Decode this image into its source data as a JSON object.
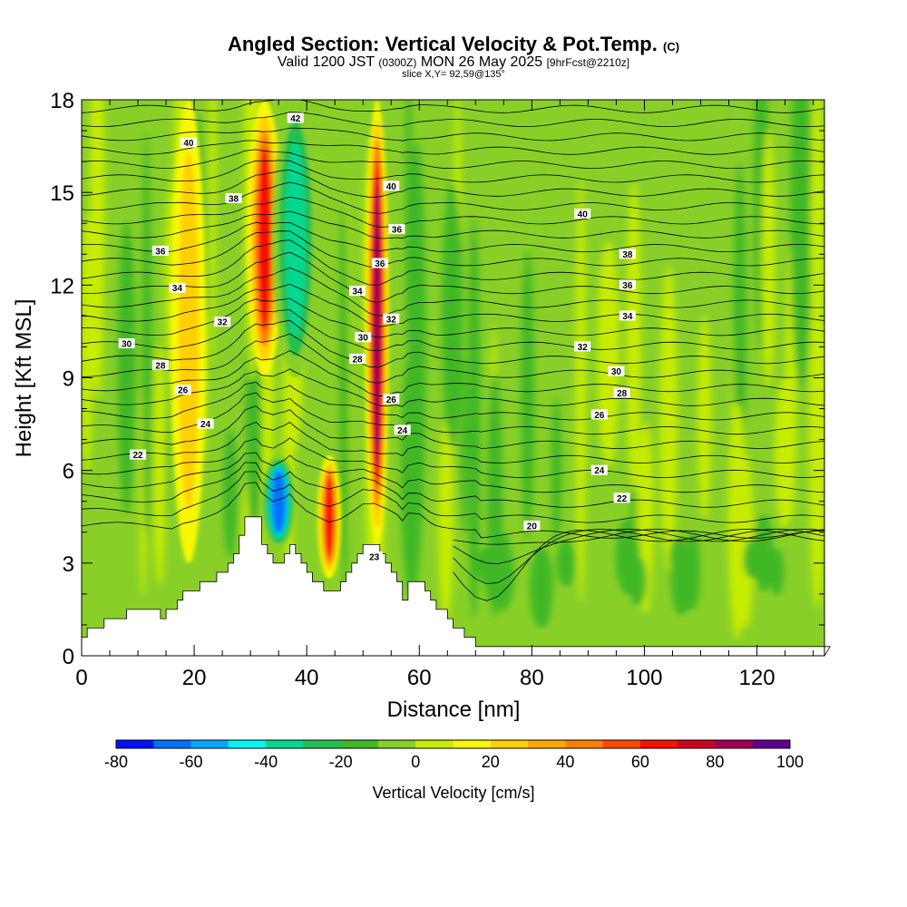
{
  "header": {
    "title_main": "Angled Section: Vertical Velocity & Pot.Temp.",
    "title_suffix": "(C)",
    "valid_prefix": "Valid 1200 JST",
    "valid_utc": "(0300Z)",
    "valid_date": "MON 26 May 2025",
    "valid_fcst": "[9hrFcst@2210z]",
    "slice": "slice X,Y= 92,59@135°"
  },
  "chart_data": {
    "type": "heatmap",
    "xlabel": "Distance [nm]",
    "ylabel": "Height [Kft MSL]",
    "xlim": [
      0,
      132
    ],
    "ylim": [
      0,
      18
    ],
    "x_ticks": [
      "0",
      "20",
      "40",
      "60",
      "80",
      "100",
      "120"
    ],
    "x_tick_values": [
      0,
      20,
      40,
      60,
      80,
      100,
      120
    ],
    "y_ticks": [
      "0",
      "3",
      "6",
      "9",
      "12",
      "15",
      "18"
    ],
    "y_tick_values": [
      0,
      3,
      6,
      9,
      12,
      15,
      18
    ],
    "colorbar": {
      "label": "Vertical Velocity [cm/s]",
      "tick_labels": [
        "-80",
        "-60",
        "-40",
        "-20",
        "0",
        "20",
        "40",
        "60",
        "80",
        "100"
      ],
      "range": [
        -80,
        100
      ],
      "step": 10,
      "colors": [
        "#0010ff",
        "#0070ff",
        "#00a8ff",
        "#00f8f0",
        "#00d890",
        "#20c050",
        "#40b828",
        "#88d028",
        "#c8ec00",
        "#f8f800",
        "#ffd000",
        "#ffa800",
        "#ff8000",
        "#ff4800",
        "#f81000",
        "#d00020",
        "#a00050",
        "#600090"
      ]
    },
    "theta_contour_labels": [
      "20",
      "22",
      "23",
      "24",
      "26",
      "28",
      "30",
      "32",
      "34",
      "36",
      "38",
      "40",
      "42"
    ],
    "terrain_profile": [
      [
        0,
        0.6
      ],
      [
        2,
        0.9
      ],
      [
        6,
        1.2
      ],
      [
        9,
        1.5
      ],
      [
        12,
        1.5
      ],
      [
        14,
        1.3
      ],
      [
        16,
        1.5
      ],
      [
        18,
        2.0
      ],
      [
        21,
        2.3
      ],
      [
        24,
        2.6
      ],
      [
        26,
        3.0
      ],
      [
        28,
        3.8
      ],
      [
        29,
        4.5
      ],
      [
        31,
        4.5
      ],
      [
        32,
        3.6
      ],
      [
        34,
        2.9
      ],
      [
        36,
        3.3
      ],
      [
        37,
        3.7
      ],
      [
        38,
        3.2
      ],
      [
        40,
        2.6
      ],
      [
        42,
        2.3
      ],
      [
        44,
        2.0
      ],
      [
        46,
        2.3
      ],
      [
        48,
        2.9
      ],
      [
        50,
        3.6
      ],
      [
        52,
        3.6
      ],
      [
        54,
        3.0
      ],
      [
        56,
        2.3
      ],
      [
        57,
        1.7
      ],
      [
        58,
        2.3
      ],
      [
        60,
        2.3
      ],
      [
        62,
        1.7
      ],
      [
        64,
        1.4
      ],
      [
        66,
        1.0
      ],
      [
        68,
        0.7
      ],
      [
        70,
        0.4
      ],
      [
        72,
        0.3
      ],
      [
        132,
        0.3
      ]
    ],
    "features": [
      {
        "kind": "updraft",
        "x_center": 32.5,
        "x_width": 3.0,
        "y_range": [
          9,
          18
        ],
        "w_cm_s": 60
      },
      {
        "kind": "updraft",
        "x_center": 52.5,
        "x_width": 2.0,
        "y_range": [
          3.5,
          18
        ],
        "w_cm_s": 80
      },
      {
        "kind": "updraft",
        "x_center": 44.0,
        "x_width": 2.0,
        "y_range": [
          2.5,
          6.5
        ],
        "w_cm_s": 60
      },
      {
        "kind": "updraft",
        "x_center": 19.0,
        "x_width": 3.0,
        "y_range": [
          3,
          18
        ],
        "w_cm_s": 20
      },
      {
        "kind": "downdraft",
        "x_center": 38.0,
        "x_width": 4.0,
        "y_range": [
          9,
          18
        ],
        "w_cm_s": -40
      },
      {
        "kind": "downdraft",
        "x_center": 35.0,
        "x_width": 3.0,
        "y_range": [
          3.5,
          6.5
        ],
        "w_cm_s": -70
      }
    ]
  }
}
